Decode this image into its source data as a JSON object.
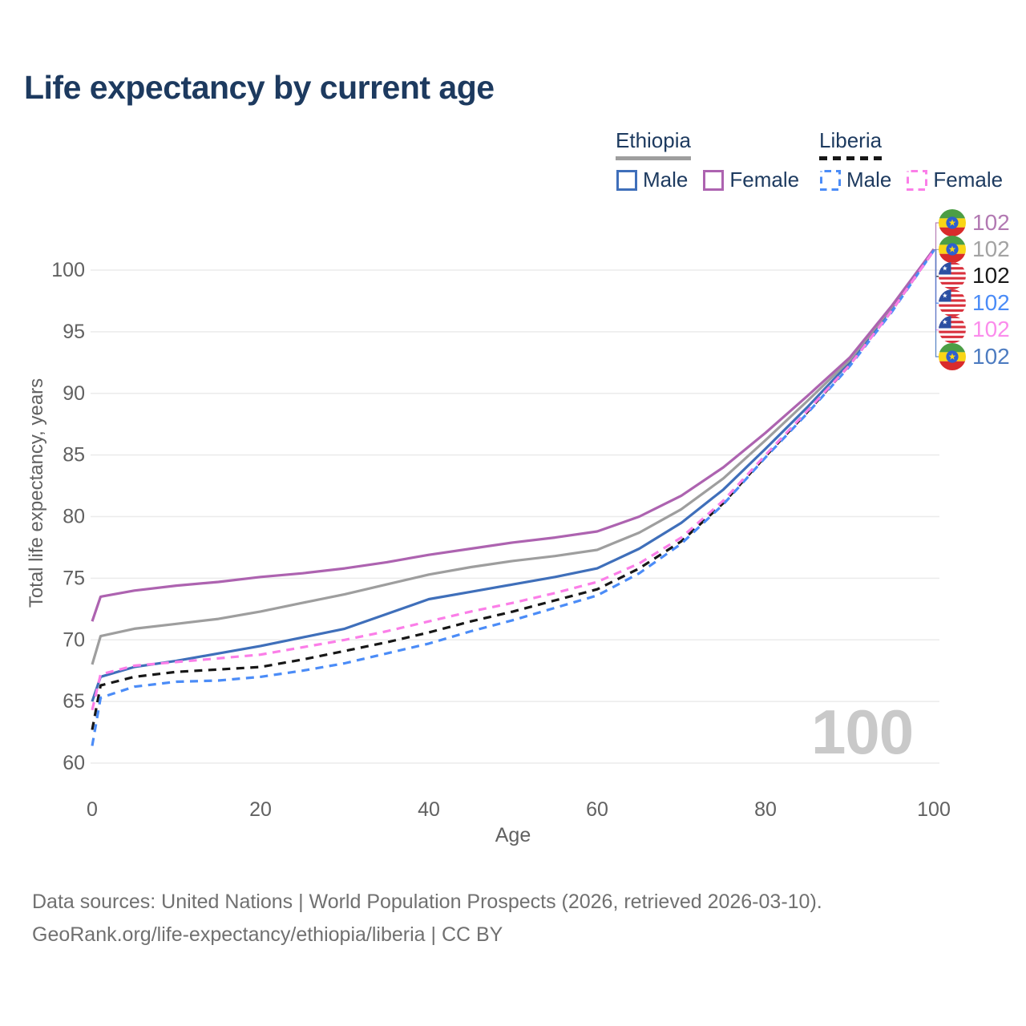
{
  "title": "Life expectancy by current age",
  "legend": {
    "groups": [
      {
        "country": "Ethiopia",
        "rule_color": "#9e9e9e",
        "rule_dashed": false,
        "items": [
          {
            "label": "Male",
            "color": "#3f6fba",
            "dashed": false
          },
          {
            "label": "Female",
            "color": "#ad63b0",
            "dashed": false
          }
        ]
      },
      {
        "country": "Liberia",
        "rule_color": "#171717",
        "rule_dashed": true,
        "items": [
          {
            "label": "Male",
            "color": "#4b8cf7",
            "dashed": true
          },
          {
            "label": "Female",
            "color": "#fb7ee8",
            "dashed": true
          }
        ]
      }
    ]
  },
  "chart_data": {
    "type": "line",
    "title": "Life expectancy by current age",
    "xlabel": "Age",
    "ylabel": "Total life expectancy, years",
    "xlim": [
      0,
      100
    ],
    "ylim": [
      58,
      103
    ],
    "xticks": [
      0,
      20,
      40,
      60,
      80,
      100
    ],
    "yticks": [
      60,
      65,
      70,
      75,
      80,
      85,
      90,
      95,
      100
    ],
    "grid": "horizontal",
    "legend_position": "top-right",
    "x": [
      0,
      1,
      5,
      10,
      15,
      20,
      25,
      30,
      35,
      40,
      45,
      50,
      55,
      60,
      65,
      70,
      75,
      80,
      85,
      90,
      95,
      100
    ],
    "series": [
      {
        "name": "Ethiopia Male",
        "country": "Ethiopia",
        "sex": "Male",
        "color": "#3f6fba",
        "dashed": false,
        "values": [
          65.0,
          67.0,
          67.8,
          68.3,
          68.9,
          69.5,
          70.2,
          70.9,
          72.1,
          73.3,
          73.9,
          74.5,
          75.1,
          75.8,
          77.4,
          79.5,
          82.2,
          85.5,
          88.9,
          92.5,
          96.9,
          101.7
        ]
      },
      {
        "name": "Ethiopia (both sexes)",
        "country": "Ethiopia",
        "sex": "Both",
        "color": "#9e9e9e",
        "dashed": false,
        "values": [
          68.0,
          70.3,
          70.9,
          71.3,
          71.7,
          72.3,
          73.0,
          73.7,
          74.5,
          75.3,
          75.9,
          76.4,
          76.8,
          77.3,
          78.7,
          80.6,
          83.1,
          86.2,
          89.4,
          92.7,
          97.0,
          101.7
        ]
      },
      {
        "name": "Ethiopia Female",
        "country": "Ethiopia",
        "sex": "Female",
        "color": "#ad63b0",
        "dashed": false,
        "values": [
          71.5,
          73.5,
          74.0,
          74.4,
          74.7,
          75.1,
          75.4,
          75.8,
          76.3,
          76.9,
          77.4,
          77.9,
          78.3,
          78.8,
          80.0,
          81.7,
          84.0,
          86.8,
          89.8,
          92.9,
          97.1,
          101.7
        ]
      },
      {
        "name": "Liberia (both sexes)",
        "country": "Liberia",
        "sex": "Both",
        "color": "#171717",
        "dashed": true,
        "values": [
          62.7,
          66.3,
          67.0,
          67.4,
          67.6,
          67.8,
          68.4,
          69.1,
          69.8,
          70.6,
          71.5,
          72.3,
          73.2,
          74.1,
          75.8,
          78.0,
          81.1,
          84.9,
          88.5,
          92.3,
          96.7,
          101.6
        ]
      },
      {
        "name": "Liberia Male",
        "country": "Liberia",
        "sex": "Male",
        "color": "#4b8cf7",
        "dashed": true,
        "values": [
          61.4,
          65.3,
          66.2,
          66.6,
          66.7,
          67.0,
          67.5,
          68.1,
          68.9,
          69.7,
          70.7,
          71.6,
          72.6,
          73.6,
          75.4,
          77.8,
          81.0,
          84.8,
          88.4,
          92.2,
          96.6,
          101.6
        ]
      },
      {
        "name": "Liberia Female",
        "country": "Liberia",
        "sex": "Female",
        "color": "#fb7ee8",
        "dashed": true,
        "values": [
          64.3,
          67.2,
          67.9,
          68.2,
          68.5,
          68.8,
          69.4,
          70.0,
          70.7,
          71.5,
          72.3,
          73.0,
          73.8,
          74.7,
          76.2,
          78.3,
          81.3,
          85.0,
          88.6,
          92.3,
          96.7,
          101.6
        ]
      }
    ]
  },
  "end_labels": [
    {
      "series": "Ethiopia Female",
      "flag": "ethiopia",
      "value": "102",
      "color": "#b279b2"
    },
    {
      "series": "Ethiopia (both sexes)",
      "flag": "ethiopia",
      "value": "102",
      "color": "#a3a3a3"
    },
    {
      "series": "Liberia (both sexes)",
      "flag": "liberia",
      "value": "102",
      "color": "#1a1a1a"
    },
    {
      "series": "Liberia Male",
      "flag": "liberia",
      "value": "102",
      "color": "#4b8cf7"
    },
    {
      "series": "Liberia Female",
      "flag": "liberia",
      "value": "102",
      "color": "#fb8cec"
    },
    {
      "series": "Ethiopia Male",
      "flag": "ethiopia",
      "value": "102",
      "color": "#4d7cc1"
    }
  ],
  "watermark": "100",
  "footer": {
    "line1": "Data sources: United Nations | World Population Prospects (2026, retrieved 2026-03-10).",
    "line2": "GeoRank.org/life-expectancy/ethiopia/liberia | CC BY"
  }
}
